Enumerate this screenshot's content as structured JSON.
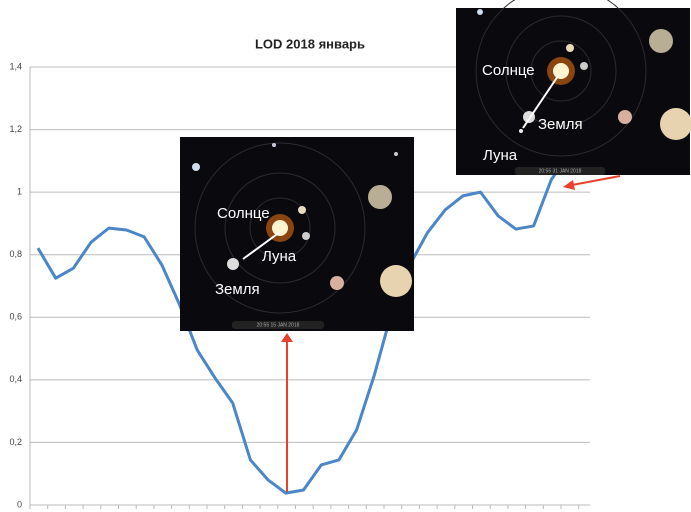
{
  "chart_data": {
    "type": "line",
    "title": "LOD 2018 январь",
    "categories": [
      null,
      null,
      null,
      null,
      null,
      null,
      null,
      null,
      null,
      null,
      null,
      null,
      null,
      null,
      null,
      null,
      null,
      null,
      null,
      null,
      null,
      null,
      null,
      null,
      null,
      null,
      null,
      null,
      null,
      null,
      null
    ],
    "series": [
      {
        "color": "#4a86c8",
        "values": [
          0.821,
          0.725,
          0.757,
          0.84,
          0.885,
          0.879,
          0.857,
          0.767,
          0.64,
          0.495,
          0.406,
          0.326,
          0.144,
          0.08,
          0.038,
          0.048,
          0.128,
          0.144,
          0.24,
          0.415,
          0.62,
          0.767,
          0.87,
          0.943,
          0.988,
          1.0,
          0.924,
          0.882,
          0.892,
          1.04,
          1.12
        ]
      }
    ],
    "ylim": [
      0,
      1.4
    ],
    "yticks": [
      0,
      {
        "value": 0.2,
        "label": "0,2"
      },
      {
        "value": 0.4,
        "label": "0,4"
      },
      {
        "value": 0.6,
        "label": "0,6"
      },
      {
        "value": 0.8,
        "label": "0,8"
      },
      1,
      {
        "value": 1.2,
        "label": "1,2"
      },
      {
        "value": 1.4,
        "label": "1,4"
      }
    ],
    "grid": true,
    "insets": [
      {
        "sun": "Солнце",
        "moon": "Луна",
        "earth": "Земля",
        "timestamp": "20:55  15 JAN 2018"
      },
      {
        "sun": "Солнце",
        "moon": "Луна",
        "earth": "Земля",
        "timestamp": "20:55  31 JAN 2018"
      }
    ]
  }
}
